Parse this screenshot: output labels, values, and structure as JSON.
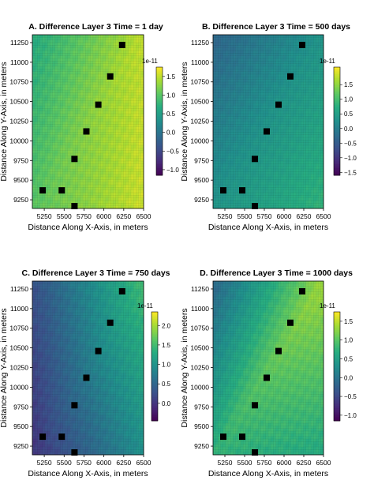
{
  "chart_data": [
    {
      "type": "heatmap",
      "title": "A. Difference Layer 3 Time = 1 day",
      "xlabel": "Distance Along X-Axis, in meters",
      "ylabel": "Distance Along Y-Axis, in meters",
      "xlim": [
        5100,
        6500
      ],
      "ylim": [
        9140,
        11350
      ],
      "x_ticks": [
        5250,
        5500,
        5750,
        6000,
        6250,
        6500
      ],
      "y_ticks": [
        9250,
        9500,
        9750,
        10000,
        10250,
        10500,
        10750,
        11000,
        11250
      ],
      "colorbar": {
        "exponent_label": "1e-11",
        "min": -1.15,
        "max": 1.75,
        "ticks": [
          -1.0,
          -0.5,
          0.0,
          0.5,
          1.0,
          1.5
        ],
        "tick_labels": [
          "−1.0",
          "−0.5",
          "0.0",
          "0.5",
          "1.0",
          "1.5"
        ]
      },
      "field": {
        "base": 1.25,
        "gx": 0.35,
        "gy": -0.1,
        "amp": 0.09
      },
      "grid_lines": true
    },
    {
      "type": "heatmap",
      "title": "B. Difference Layer 3 Time = 500 days",
      "xlabel": "Distance Along X-Axis, in meters",
      "ylabel": "Distance Along Y-Axis, in meters",
      "xlim": [
        5100,
        6500
      ],
      "ylim": [
        9140,
        11350
      ],
      "x_ticks": [
        5250,
        5500,
        5750,
        6000,
        6250,
        6500
      ],
      "y_ticks": [
        9250,
        9500,
        9750,
        10000,
        10250,
        10500,
        10750,
        11000,
        11250
      ],
      "colorbar": {
        "exponent_label": "1e-11",
        "min": -1.6,
        "max": 2.1,
        "ticks": [
          -1.5,
          -1.0,
          -0.5,
          0.0,
          0.5,
          1.0,
          1.5
        ],
        "tick_labels": [
          "−1.5",
          "−1.0",
          "−0.5",
          "0.0",
          "0.5",
          "1.0",
          "1.5"
        ]
      },
      "field": {
        "base": 0.35,
        "gx": 0.3,
        "gy": -0.3,
        "amp": 0.06
      },
      "grid_lines": true
    },
    {
      "type": "heatmap",
      "title": "C. Difference Layer 3 Time = 750 days",
      "xlabel": "Distance Along X-Axis, in meters",
      "ylabel": "Distance Along Y-Axis, in meters",
      "xlim": [
        5100,
        6500
      ],
      "ylim": [
        9140,
        11350
      ],
      "x_ticks": [
        5250,
        5500,
        5750,
        6000,
        6250,
        6500
      ],
      "y_ticks": [
        9250,
        9500,
        9750,
        10000,
        10250,
        10500,
        10750,
        11000,
        11250
      ],
      "colorbar": {
        "exponent_label": "1e-11",
        "min": -0.45,
        "max": 2.35,
        "ticks": [
          0.0,
          0.5,
          1.0,
          1.5,
          2.0
        ],
        "tick_labels": [
          "0.0",
          "0.5",
          "1.0",
          "1.5",
          "2.0"
        ]
      },
      "field": {
        "base": 0.75,
        "gx": 0.55,
        "gy": 0.2,
        "amp": 0.08
      },
      "grid_lines": true
    },
    {
      "type": "heatmap",
      "title": "D. Difference Layer 3 Time = 1000 days",
      "xlabel": "Distance Along X-Axis, in meters",
      "ylabel": "Distance Along Y-Axis, in meters",
      "xlim": [
        5100,
        6500
      ],
      "ylim": [
        9140,
        11350
      ],
      "x_ticks": [
        5250,
        5500,
        5750,
        6000,
        6250,
        6500
      ],
      "y_ticks": [
        9250,
        9500,
        9750,
        10000,
        10250,
        10500,
        10750,
        11000,
        11250
      ],
      "colorbar": {
        "exponent_label": "1e-11",
        "min": -1.15,
        "max": 1.75,
        "ticks": [
          -1.0,
          -0.5,
          0.0,
          0.5,
          1.0,
          1.5
        ],
        "tick_labels": [
          "−1.0",
          "−0.5",
          "0.0",
          "0.5",
          "1.0",
          "1.5"
        ]
      },
      "field": {
        "base": 1.05,
        "gx": 0.35,
        "gy": -0.05,
        "amp": 0.5
      },
      "grid_lines": true
    }
  ],
  "wells": [
    {
      "x": 5230,
      "y": 9370
    },
    {
      "x": 5470,
      "y": 9370
    },
    {
      "x": 5630,
      "y": 9170
    },
    {
      "x": 5630,
      "y": 9770
    },
    {
      "x": 5780,
      "y": 10120
    },
    {
      "x": 5930,
      "y": 10460
    },
    {
      "x": 6080,
      "y": 10820
    },
    {
      "x": 6230,
      "y": 11220
    }
  ]
}
